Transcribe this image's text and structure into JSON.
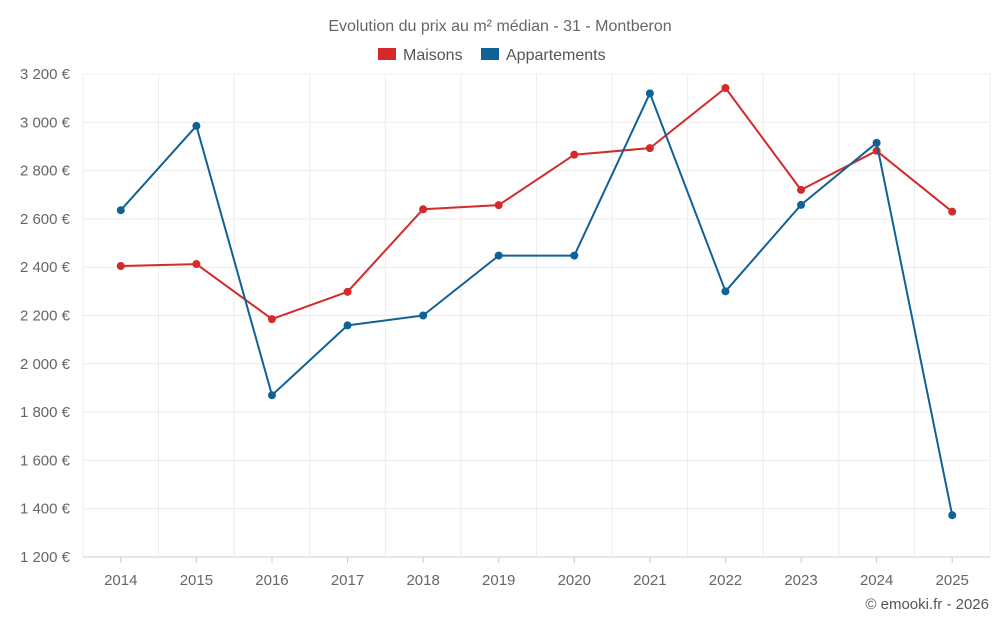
{
  "chart_data": {
    "type": "line",
    "title": "Evolution du prix au m² médian - 31 - Montberon",
    "categories": [
      "2014",
      "2015",
      "2016",
      "2017",
      "2018",
      "2019",
      "2020",
      "2021",
      "2022",
      "2023",
      "2024",
      "2025"
    ],
    "series": [
      {
        "name": "Maisons",
        "color": "#d42a2a",
        "values": [
          2405,
          2413,
          2185,
          2298,
          2640,
          2657,
          2866,
          2893,
          3142,
          2720,
          2882,
          2630
        ]
      },
      {
        "name": "Appartements",
        "color": "#0f6196",
        "values": [
          2636,
          2985,
          1870,
          2159,
          2200,
          2448,
          2448,
          3120,
          2300,
          2658,
          2915,
          1373
        ]
      }
    ],
    "ylim": [
      1200,
      3200
    ],
    "ytick_values": [
      1200,
      1400,
      1600,
      1800,
      2000,
      2200,
      2400,
      2600,
      2800,
      3000,
      3200
    ],
    "ytick_labels": [
      "1 200 €",
      "1 400 €",
      "1 600 €",
      "1 800 €",
      "2 000 €",
      "2 200 €",
      "2 400 €",
      "2 600 €",
      "2 800 €",
      "3 000 €",
      "3 200 €"
    ],
    "xlabel": "",
    "ylabel": "",
    "grid": true,
    "legend_position": "top-center"
  },
  "credit": "© emooki.fr - 2026"
}
